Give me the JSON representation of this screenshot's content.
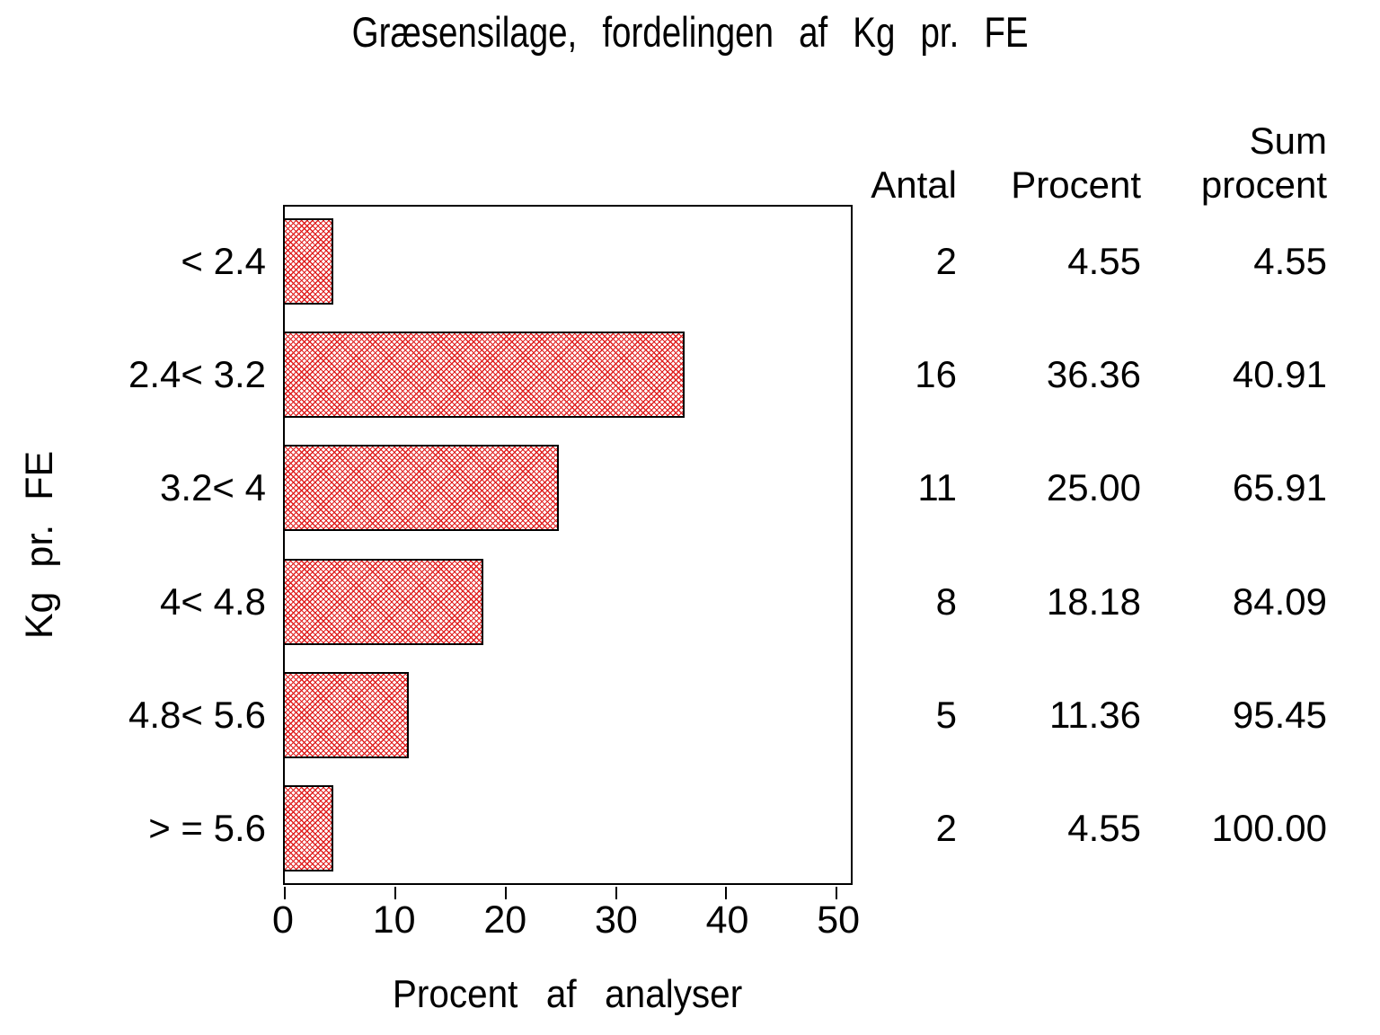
{
  "title": "Græsensilage, fordelingen af Kg pr. FE",
  "chart_data": {
    "type": "bar",
    "orientation": "horizontal",
    "title": "Græsensilage, fordelingen af Kg pr. FE",
    "categories": [
      "< 2.4",
      "2.4< 3.2",
      "3.2< 4",
      "4< 4.8",
      "4.8< 5.6",
      "> = 5.6"
    ],
    "values": [
      4.55,
      36.36,
      25.0,
      18.18,
      11.36,
      4.55
    ],
    "xlabel": "Procent af analyser",
    "ylabel": "Kg pr. FE",
    "xlim": [
      0,
      50
    ],
    "xticks": [
      "0",
      "10",
      "20",
      "30",
      "40",
      "50"
    ],
    "grid": false,
    "bar_style": {
      "fill_pattern": "diagonal-crosshatch",
      "pattern_color": "#e01f1f",
      "outline_color": "#000000",
      "background": "#ffffff"
    },
    "table": {
      "headers": [
        "Antal",
        "Procent",
        "Sum\nprocent"
      ],
      "rows": [
        [
          "2",
          "4.55",
          "4.55"
        ],
        [
          "16",
          "36.36",
          "40.91"
        ],
        [
          "11",
          "25.00",
          "65.91"
        ],
        [
          "8",
          "18.18",
          "84.09"
        ],
        [
          "5",
          "11.36",
          "95.45"
        ],
        [
          "2",
          "4.55",
          "100.00"
        ]
      ]
    }
  }
}
